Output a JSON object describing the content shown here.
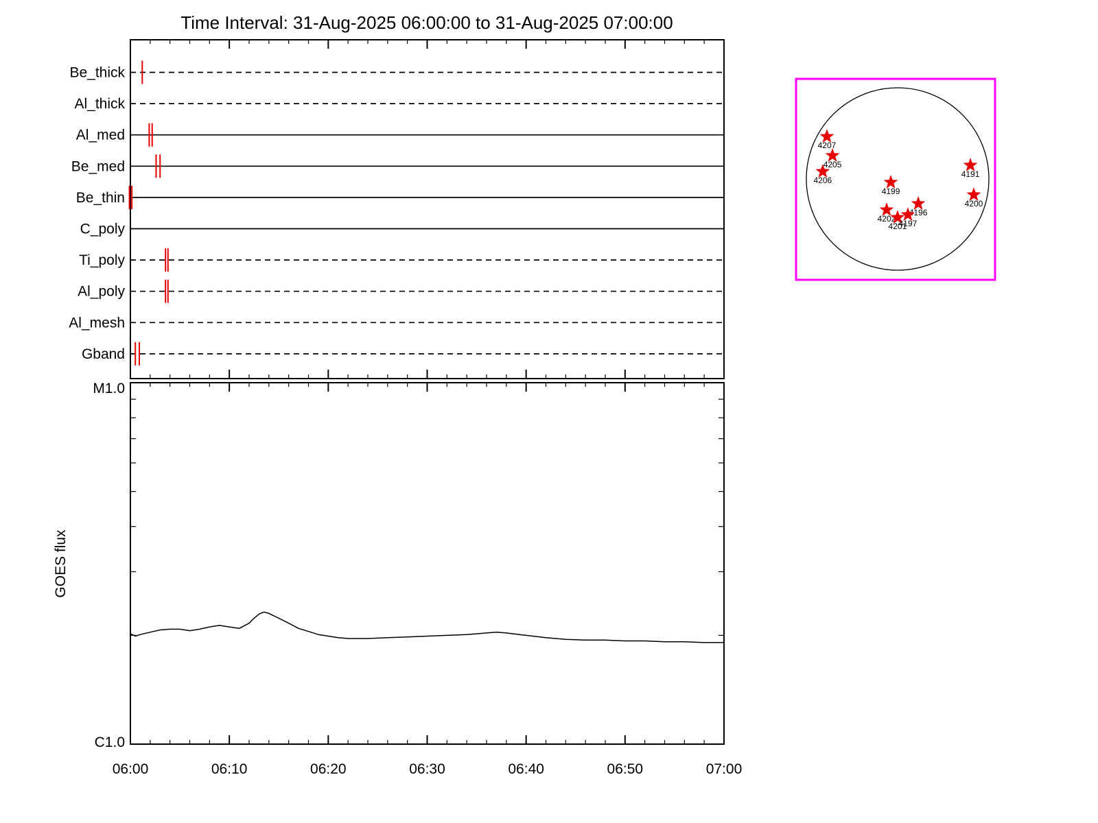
{
  "title": "Time Interval: 31-Aug-2025 06:00:00 to 31-Aug-2025 07:00:00",
  "top_panel": {
    "mark_color": "#e60000",
    "filters": [
      {
        "label": "Be_thick",
        "style": "dashed",
        "marks": [
          1.2
        ]
      },
      {
        "label": "Al_thick",
        "style": "dashed",
        "marks": []
      },
      {
        "label": "Al_med",
        "style": "solid",
        "marks": [
          1.9,
          2.2
        ]
      },
      {
        "label": "Be_med",
        "style": "solid",
        "marks": [
          2.6,
          3.0
        ]
      },
      {
        "label": "Be_thin",
        "style": "solid",
        "marks": [
          -0.1,
          0.15
        ]
      },
      {
        "label": "C_poly",
        "style": "solid",
        "marks": []
      },
      {
        "label": "Ti_poly",
        "style": "dashed",
        "marks": [
          3.55,
          3.8
        ]
      },
      {
        "label": "Al_poly",
        "style": "dashed",
        "marks": [
          3.55,
          3.8
        ]
      },
      {
        "label": "Al_mesh",
        "style": "dashed",
        "marks": []
      },
      {
        "label": "Gband",
        "style": "dashed",
        "marks": [
          0.5,
          0.9
        ]
      }
    ]
  },
  "chart_data": {
    "type": "line",
    "title": "Time Interval: 31-Aug-2025 06:00:00 to 31-Aug-2025 07:00:00",
    "xlabel": "",
    "ylabel": "GOES flux",
    "x_unit": "minutes after 06:00:00 UT",
    "x_range_minutes": [
      0,
      60
    ],
    "x_tick_labels": [
      "06:00",
      "06:10",
      "06:20",
      "06:30",
      "06:40",
      "06:50",
      "07:00"
    ],
    "y_axis": {
      "scale": "log",
      "top_label": "M1.0",
      "bottom_label": "C1.0",
      "y_units": "GOES C-class units (x1e-6 W/m^2)",
      "ylim_c_units": [
        1,
        10
      ]
    },
    "series": [
      {
        "name": "GOES flux",
        "x": [
          0,
          0.5,
          1,
          2,
          3,
          4,
          5,
          6,
          7,
          8,
          9,
          10,
          11,
          12,
          12.5,
          13,
          13.5,
          14,
          15,
          16,
          17,
          18,
          19,
          20,
          21,
          22,
          24,
          26,
          28,
          30,
          32,
          34,
          35,
          36,
          37,
          38,
          40,
          42,
          44,
          46,
          48,
          50,
          52,
          54,
          56,
          58,
          60
        ],
        "y": [
          2.02,
          1.99,
          2.01,
          2.04,
          2.07,
          2.08,
          2.08,
          2.06,
          2.08,
          2.11,
          2.13,
          2.11,
          2.09,
          2.16,
          2.23,
          2.29,
          2.32,
          2.3,
          2.23,
          2.16,
          2.09,
          2.05,
          2.01,
          1.99,
          1.97,
          1.96,
          1.96,
          1.97,
          1.98,
          1.99,
          2.0,
          2.01,
          2.02,
          2.03,
          2.04,
          2.03,
          2.0,
          1.97,
          1.95,
          1.94,
          1.94,
          1.93,
          1.93,
          1.92,
          1.92,
          1.91,
          1.91
        ]
      }
    ]
  },
  "inset": {
    "border_color": "#ff00ff",
    "star_color": "#e60000",
    "regions": [
      {
        "id": "4207",
        "fx": 0.155,
        "fy": 0.287
      },
      {
        "id": "4205",
        "fx": 0.183,
        "fy": 0.382
      },
      {
        "id": "4206",
        "fx": 0.134,
        "fy": 0.461
      },
      {
        "id": "4199",
        "fx": 0.476,
        "fy": 0.515
      },
      {
        "id": "4191",
        "fx": 0.876,
        "fy": 0.43
      },
      {
        "id": "4200",
        "fx": 0.893,
        "fy": 0.577
      },
      {
        "id": "4202",
        "fx": 0.455,
        "fy": 0.652
      },
      {
        "id": "4196",
        "fx": 0.614,
        "fy": 0.621
      },
      {
        "id": "4201",
        "fx": 0.51,
        "fy": 0.69
      },
      {
        "id": "4197",
        "fx": 0.562,
        "fy": 0.676
      }
    ]
  }
}
